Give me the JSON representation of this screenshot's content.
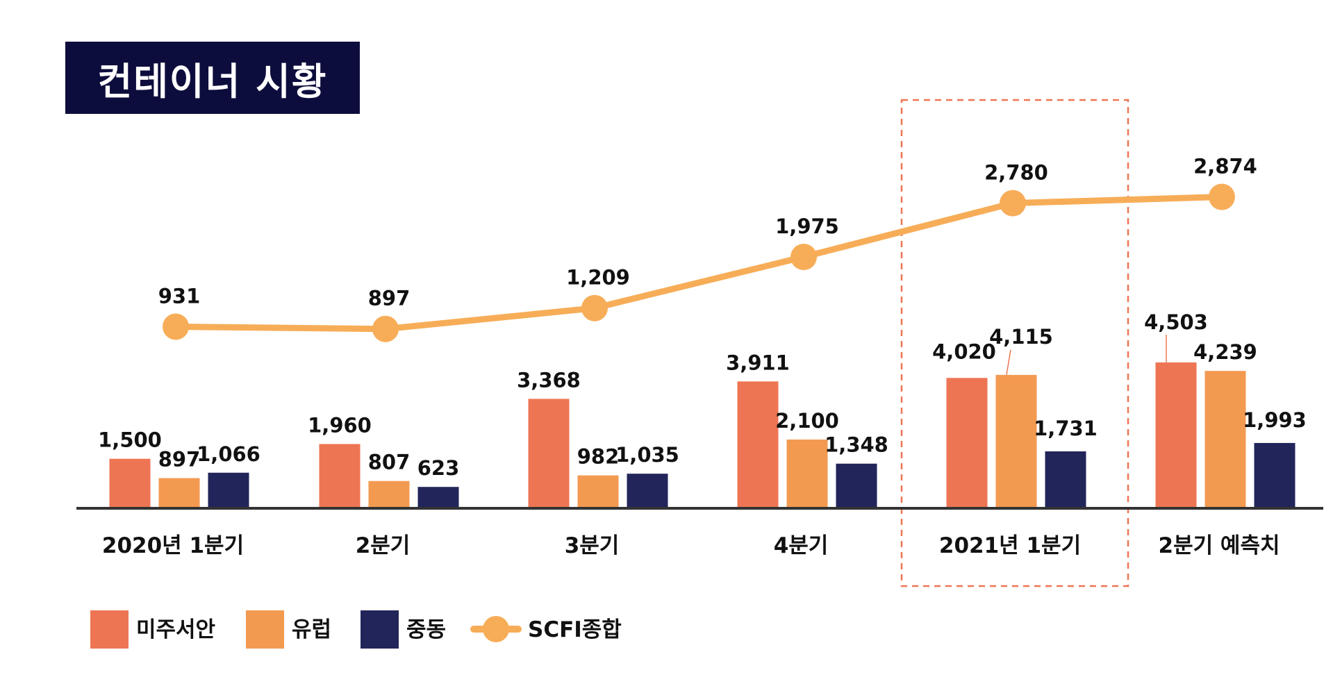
{
  "title": "컨테이너 시황",
  "colors": {
    "title_bg": "#0d0d3d",
    "us_west": "#ee7553",
    "europe": "#f39a51",
    "middle_east": "#22255a",
    "scfi": "#f7ad58",
    "highlight": "#ee7553",
    "axis": "#333333"
  },
  "chart_data": {
    "type": "bar",
    "title": "컨테이너 시황",
    "categories": [
      "2020년 1분기",
      "2분기",
      "3분기",
      "4분기",
      "2021년 1분기",
      "2분기 예측치"
    ],
    "series": [
      {
        "name": "미주서안",
        "type": "bar",
        "values": [
          1500,
          1960,
          3368,
          3911,
          4020,
          4503
        ],
        "labels": [
          "1,500",
          "1,960",
          "3,368",
          "3,911",
          "4,020",
          "4,503"
        ]
      },
      {
        "name": "유럽",
        "type": "bar",
        "values": [
          897,
          807,
          982,
          2100,
          4115,
          4239
        ],
        "labels": [
          "897",
          "807",
          "982",
          "2,100",
          "4,115",
          "4,239"
        ]
      },
      {
        "name": "중동",
        "type": "bar",
        "values": [
          1066,
          623,
          1035,
          1348,
          1731,
          1993
        ],
        "labels": [
          "1,066",
          "623",
          "1,035",
          "1,348",
          "1,731",
          "1,993"
        ]
      },
      {
        "name": "SCFI종합",
        "type": "line",
        "values": [
          931,
          897,
          1209,
          1975,
          2780,
          2874
        ],
        "labels": [
          "931",
          "897",
          "1,209",
          "1,975",
          "2,780",
          "2,874"
        ]
      }
    ],
    "bar_ylim": [
      0,
      4700
    ],
    "line_ylim": [
      -1700,
      3000
    ],
    "highlighted_category": "2021년 1분기",
    "legend_position": "bottom-left",
    "grid": false
  }
}
